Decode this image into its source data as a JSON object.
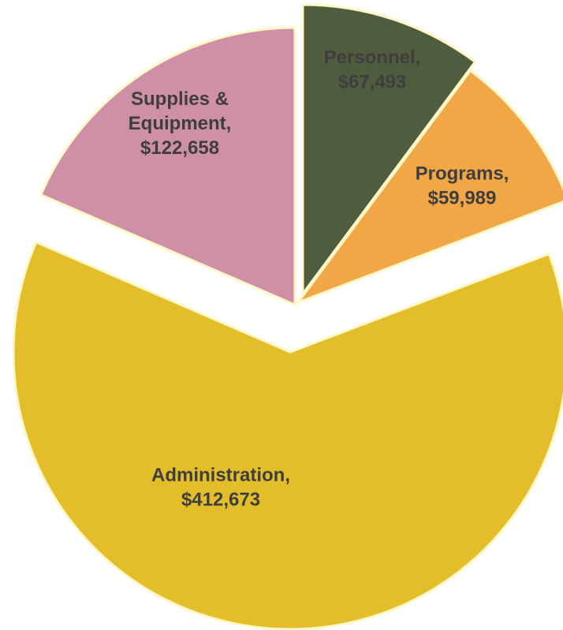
{
  "chart_data": {
    "type": "pie",
    "title": "",
    "slices": [
      {
        "label": "Personnel",
        "value_text": "$67,493",
        "value": 67493,
        "color": "#4f5d3e"
      },
      {
        "label": "Programs",
        "value_text": "$59,989",
        "value": 59989,
        "color": "#f2a747"
      },
      {
        "label": "Administration",
        "value_text": "$412,673",
        "value": 412673,
        "color": "#e4bd2a"
      },
      {
        "label": "Supplies & Equipment",
        "value_text": "$122,658",
        "value": 122658,
        "color": "#cf8fa6"
      }
    ],
    "legend": "none",
    "exploded": true
  }
}
